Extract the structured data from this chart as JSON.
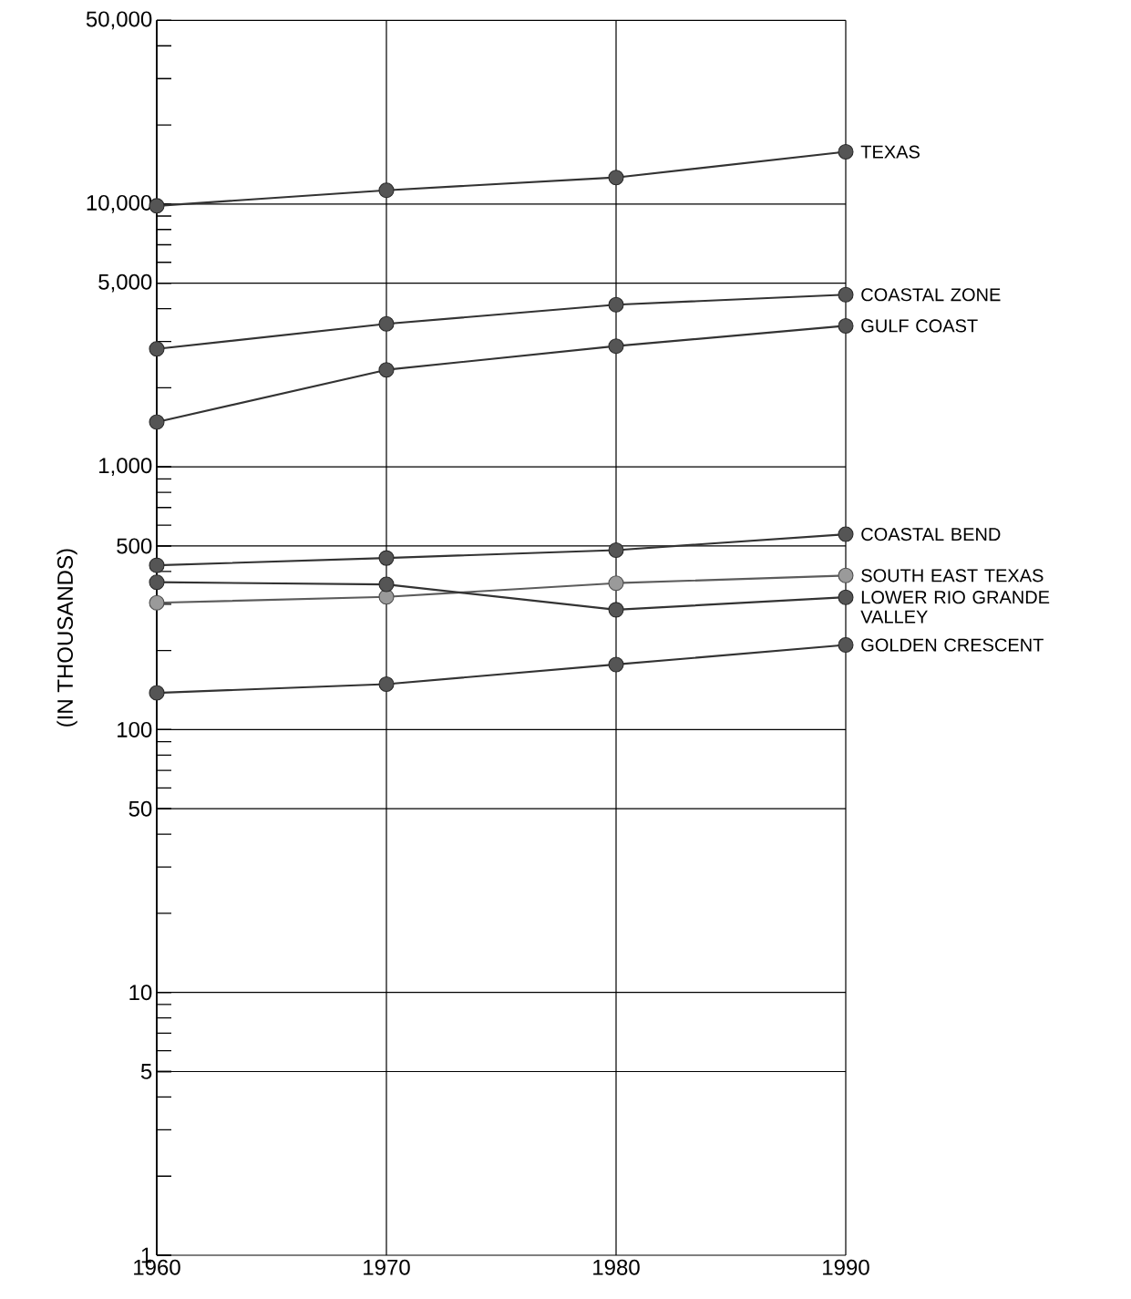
{
  "chart_data": {
    "type": "line",
    "ylabel": "(IN THOUSANDS)",
    "x": [
      1960,
      1970,
      1980,
      1990
    ],
    "xlim": [
      1960,
      1990
    ],
    "xticks": [
      1960,
      1970,
      1980,
      1990
    ],
    "log": "y",
    "ylim": [
      1,
      50000
    ],
    "yticks": [
      1,
      {
        "value": 2,
        "label": null
      },
      {
        "value": 3,
        "label": null
      },
      {
        "value": 4,
        "label": null
      },
      5,
      {
        "value": 6,
        "label": null
      },
      {
        "value": 7,
        "label": null
      },
      {
        "value": 8,
        "label": null
      },
      {
        "value": 9,
        "label": null
      },
      10,
      {
        "value": 20,
        "label": null
      },
      {
        "value": 30,
        "label": null
      },
      {
        "value": 40,
        "label": null
      },
      50,
      {
        "value": 60,
        "label": null
      },
      {
        "value": 70,
        "label": null
      },
      {
        "value": 80,
        "label": null
      },
      {
        "value": 90,
        "label": null
      },
      100,
      {
        "value": 200,
        "label": null
      },
      {
        "value": 300,
        "label": null
      },
      {
        "value": 400,
        "label": null
      },
      500,
      {
        "value": 600,
        "label": null
      },
      {
        "value": 700,
        "label": null
      },
      {
        "value": 800,
        "label": null
      },
      {
        "value": 900,
        "label": null
      },
      {
        "value": 1000,
        "label": "1,000"
      },
      {
        "value": 2000,
        "label": null
      },
      {
        "value": 3000,
        "label": null
      },
      {
        "value": 4000,
        "label": null
      },
      {
        "value": 5000,
        "label": "5,000"
      },
      {
        "value": 6000,
        "label": null
      },
      {
        "value": 7000,
        "label": null
      },
      {
        "value": 8000,
        "label": null
      },
      {
        "value": 9000,
        "label": null
      },
      {
        "value": 10000,
        "label": "10,000"
      },
      {
        "value": 20000,
        "label": null
      },
      {
        "value": 30000,
        "label": null
      },
      {
        "value": 40000,
        "label": null
      },
      {
        "value": 50000,
        "label": "50,000"
      }
    ],
    "grid": true,
    "marker": "circle",
    "line_style": "solid",
    "series": [
      {
        "name": "TEXAS",
        "color": "#555555",
        "values": [
          9840,
          11280,
          12620,
          15800
        ]
      },
      {
        "name": "COASTAL ZONE",
        "color": "#555555",
        "values": [
          2810,
          3500,
          4140,
          4520
        ]
      },
      {
        "name": "GULF COAST",
        "color": "#555555",
        "values": [
          1480,
          2340,
          2880,
          3440
        ]
      },
      {
        "name": "COASTAL BEND",
        "color": "#555555",
        "values": [
          422,
          450,
          482,
          554
        ]
      },
      {
        "name": "SOUTH EAST TEXAS",
        "color": "#9a9a9a",
        "values": [
          304,
          320,
          361,
          386
        ]
      },
      {
        "name": "LOWER RIO GRANDE VALLEY",
        "color": "#555555",
        "values": [
          364,
          357,
          286,
          319
        ]
      },
      {
        "name": "GOLDEN CRESCENT",
        "color": "#555555",
        "values": [
          138,
          149,
          177,
          210
        ]
      }
    ]
  }
}
